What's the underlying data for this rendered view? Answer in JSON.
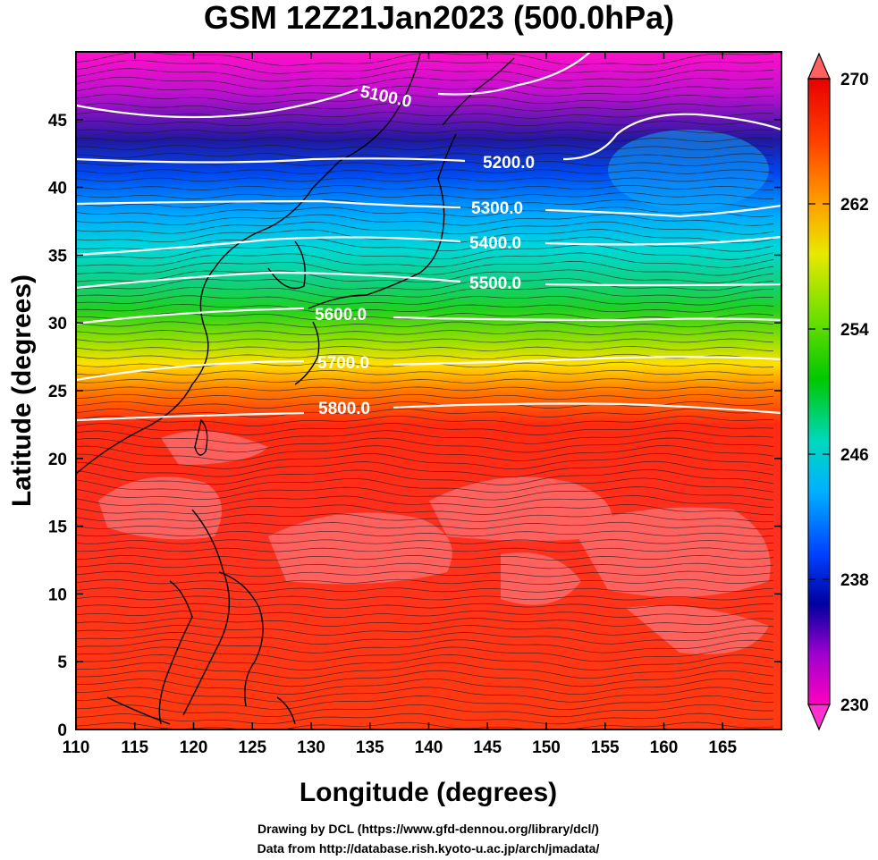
{
  "title": "GSM 12Z21Jan2023 (500.0hPa)",
  "x_axis": {
    "label": "Longitude (degrees)",
    "range": [
      110,
      170
    ],
    "ticks": [
      "110",
      "115",
      "120",
      "125",
      "130",
      "135",
      "140",
      "145",
      "150",
      "155",
      "160",
      "165"
    ]
  },
  "y_axis": {
    "label": "Latitude  (degrees)",
    "range": [
      0,
      50
    ],
    "ticks": [
      "0",
      "5",
      "10",
      "15",
      "20",
      "25",
      "30",
      "35",
      "40",
      "45"
    ]
  },
  "colorbar": {
    "min": 230,
    "max": 270,
    "labels": [
      "270",
      "262",
      "254",
      "246",
      "238",
      "230"
    ],
    "colors": [
      "#e80000",
      "#ff5a00",
      "#ffb000",
      "#e8e800",
      "#55e000",
      "#00c000",
      "#00d8b0",
      "#00c8ff",
      "#0050ff",
      "#0000b0",
      "#a000d0",
      "#ff00c0"
    ]
  },
  "contours": [
    {
      "label": "5100.0"
    },
    {
      "label": "5200.0"
    },
    {
      "label": "5300.0"
    },
    {
      "label": "5400.0"
    },
    {
      "label": "5500.0"
    },
    {
      "label": "5600.0"
    },
    {
      "label": "5700.0"
    },
    {
      "label": "5800.0"
    }
  ],
  "credits": [
    "Drawing by DCL (https://www.gfd-dennou.org/library/dcl/)",
    "Data from http://database.rish.kyoto-u.ac.jp/arch/jmadata/"
  ]
}
